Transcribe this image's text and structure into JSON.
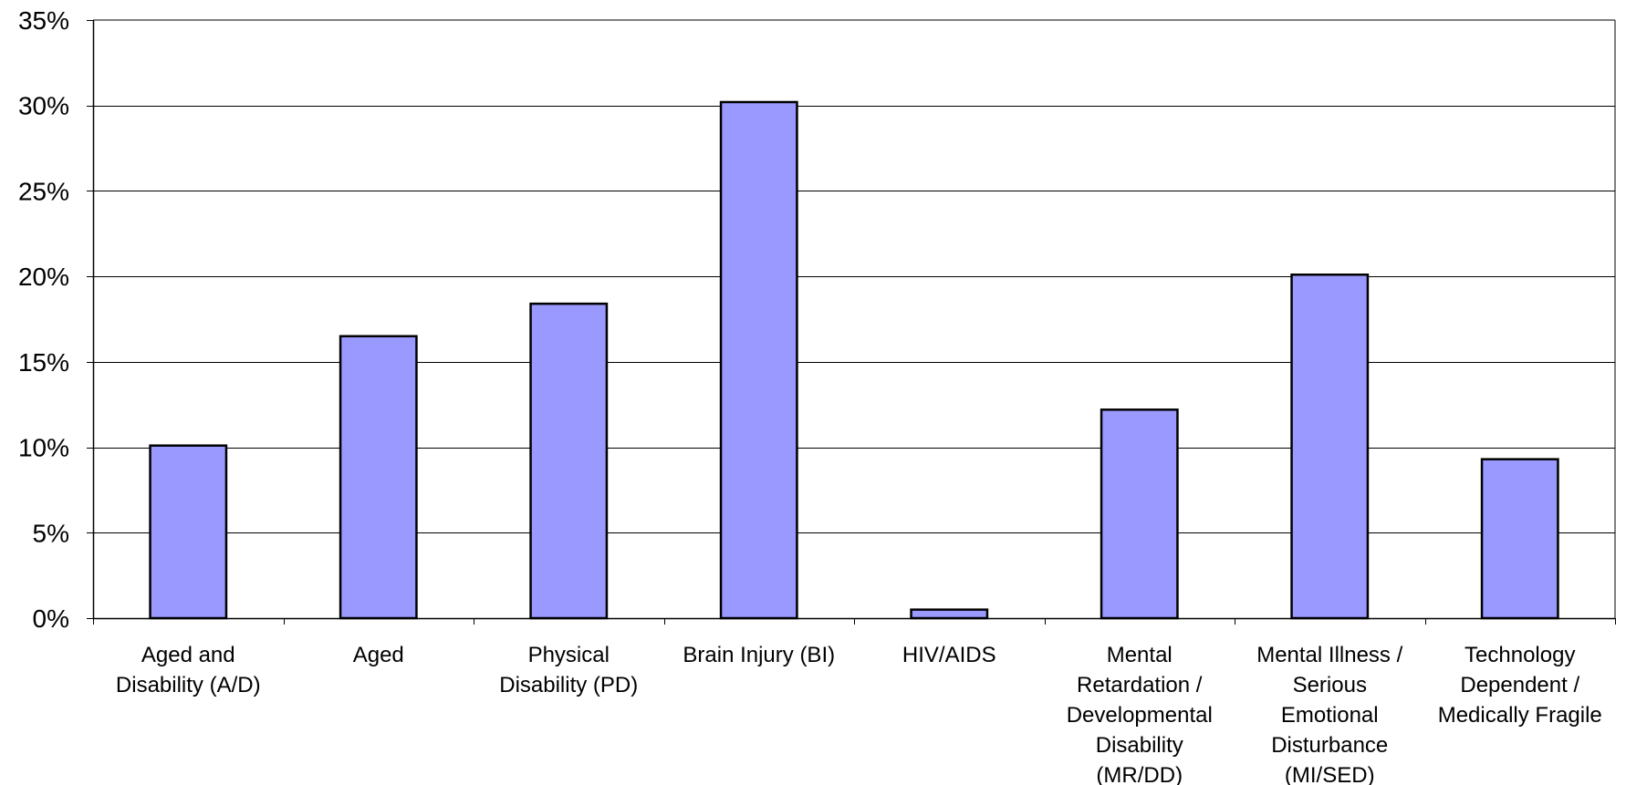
{
  "chart_data": {
    "type": "bar",
    "title": "",
    "xlabel": "",
    "ylabel": "",
    "categories": [
      [
        "Aged and",
        "Disability (A/D)"
      ],
      [
        "Aged"
      ],
      [
        "Physical",
        "Disability (PD)"
      ],
      [
        "Brain Injury (BI)"
      ],
      [
        "HIV/AIDS"
      ],
      [
        "Mental",
        "Retardation /",
        "Developmental",
        "Disability",
        "(MR/DD)"
      ],
      [
        "Mental Illness /",
        "Serious",
        "Emotional",
        "Disturbance",
        "(MI/SED)"
      ],
      [
        "Technology",
        "Dependent /",
        "Medically Fragile"
      ]
    ],
    "values": [
      10.1,
      16.5,
      18.4,
      30.2,
      0.5,
      12.2,
      20.1,
      9.3
    ],
    "ylim": [
      0,
      35
    ],
    "yticks": [
      0,
      5,
      10,
      15,
      20,
      25,
      30,
      35
    ],
    "ytick_labels": [
      "0%",
      "5%",
      "10%",
      "15%",
      "20%",
      "25%",
      "30%",
      "35%"
    ],
    "grid": true,
    "legend": "none",
    "colors": {
      "bar_fill": "#9999ff",
      "bar_stroke": "#000000",
      "gridline": "#000000",
      "axis": "#000000"
    }
  }
}
